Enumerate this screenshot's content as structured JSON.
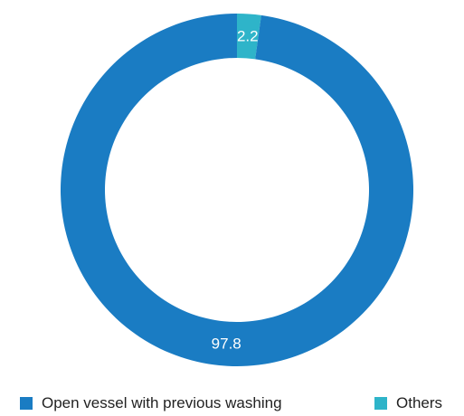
{
  "chart_data": {
    "type": "pie",
    "variant": "donut",
    "categories": [
      "Open vessel with previous washing",
      "Others"
    ],
    "values": [
      97.8,
      2.2
    ],
    "data_labels": [
      "97.8",
      "2.2"
    ],
    "colors": [
      "#1a7cc3",
      "#2eb4c9"
    ],
    "start_angle_deg": 0,
    "direction": "counter-clockwise",
    "legend_position": "bottom"
  },
  "legend": {
    "items": [
      {
        "label": "Open vessel with previous washing",
        "color": "#1a7cc3"
      },
      {
        "label": "Others",
        "color": "#2eb4c9"
      }
    ]
  }
}
